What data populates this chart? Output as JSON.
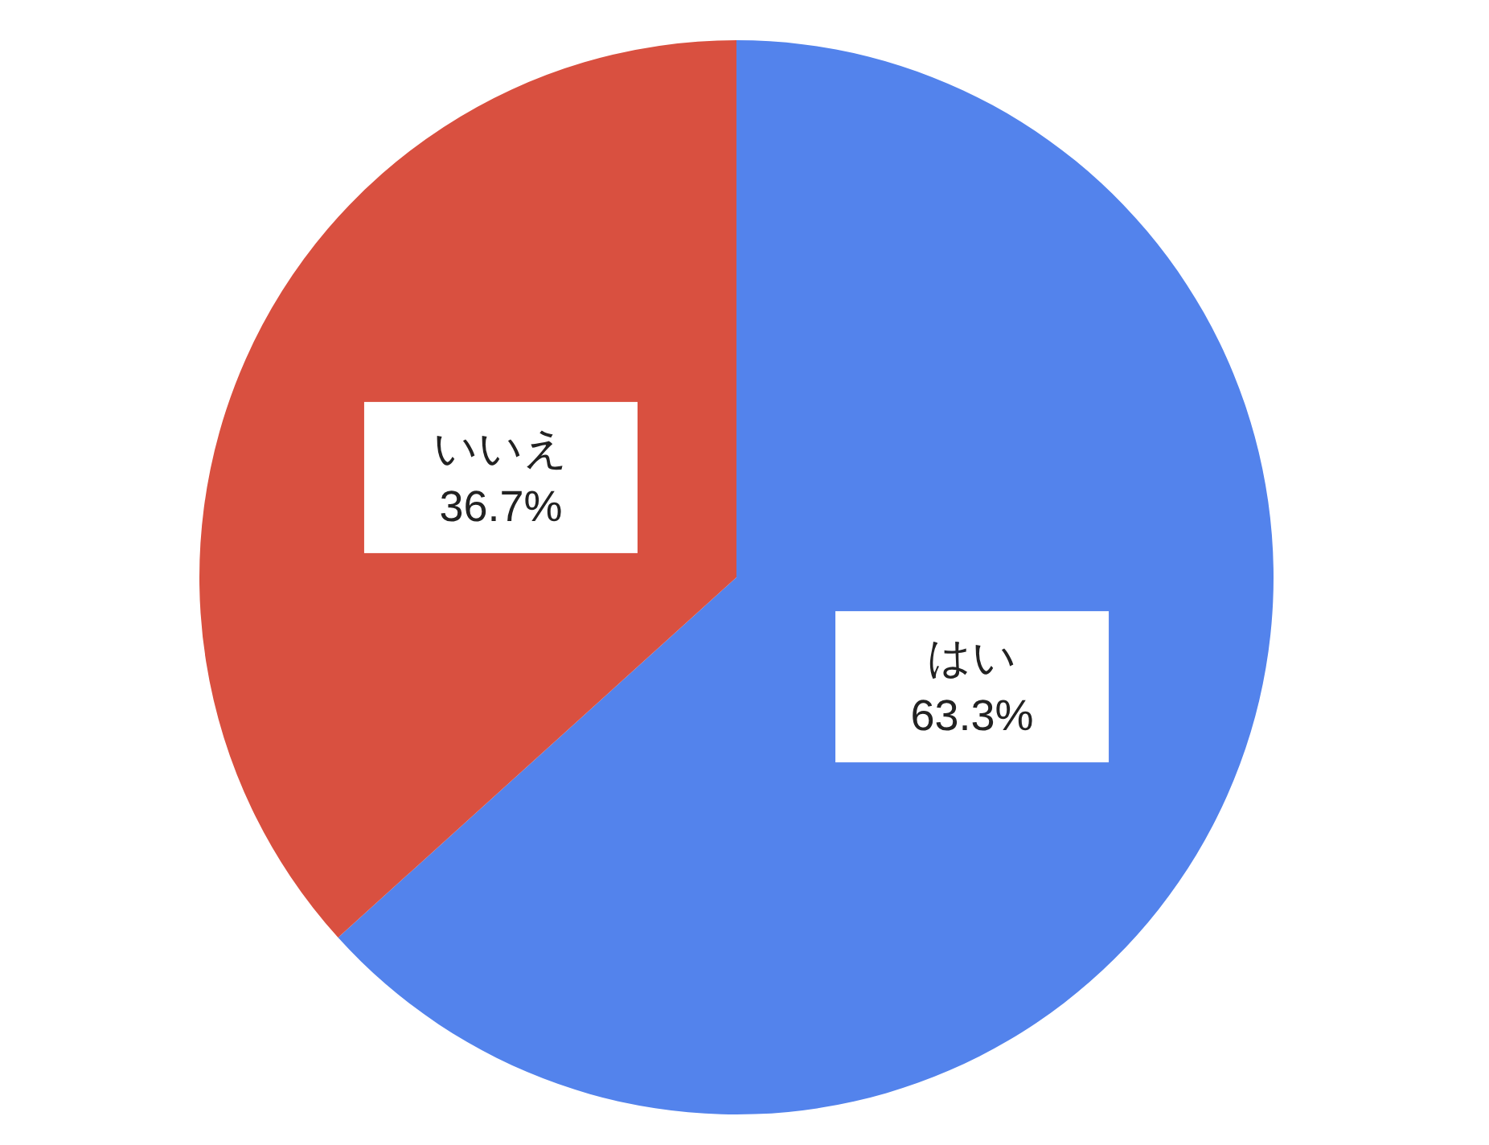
{
  "chart_data": {
    "type": "pie",
    "categories": [
      "はい",
      "いいえ"
    ],
    "values": [
      63.3,
      36.7
    ],
    "colors": [
      "#5383ec",
      "#d95040"
    ],
    "value_labels": [
      "63.3%",
      "36.7%"
    ]
  }
}
